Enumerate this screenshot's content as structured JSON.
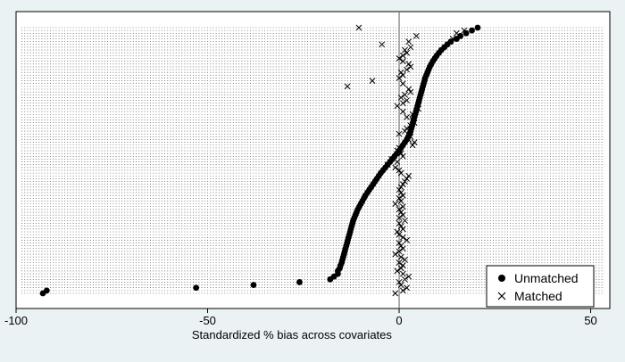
{
  "chart_data": {
    "type": "scatter",
    "title": "",
    "xlabel": "Standardized % bias across covariates",
    "ylabel": "",
    "xlim": [
      -100,
      55
    ],
    "xticks": [
      -100,
      -50,
      0,
      50
    ],
    "xtick_labels": [
      "-100",
      "-50",
      "0",
      "50"
    ],
    "grid": "dotted horizontal line per covariate",
    "reference_line_x": 0,
    "legend_position": "bottom-right",
    "n_covariates": 96,
    "series": [
      {
        "name": "Unmatched",
        "marker": "filled-circle",
        "color": "#000000",
        "values": [
          -93,
          -92,
          -53,
          -38,
          -26,
          -18,
          -17,
          -16,
          -16,
          -15.5,
          -15.3,
          -15,
          -14.8,
          -14.6,
          -14.4,
          -14.2,
          -14,
          -13.8,
          -13.6,
          -13.4,
          -13.2,
          -13,
          -12.8,
          -12.6,
          -12.4,
          -12.2,
          -12,
          -11.7,
          -11.4,
          -11.1,
          -10.8,
          -10.4,
          -10,
          -9.6,
          -9.2,
          -8.8,
          -8.3,
          -7.8,
          -7.3,
          -6.8,
          -6.3,
          -5.8,
          -5.3,
          -4.8,
          -4.2,
          -3.6,
          -3,
          -2.4,
          -1.8,
          -1.2,
          -0.6,
          0,
          0.5,
          1,
          1.5,
          2,
          2.4,
          2.7,
          3,
          3.2,
          3.4,
          3.6,
          3.8,
          4,
          4.2,
          4.4,
          4.6,
          4.8,
          5,
          5.2,
          5.4,
          5.6,
          5.8,
          6,
          6.2,
          6.4,
          6.6,
          6.8,
          7.1,
          7.4,
          7.7,
          8,
          8.4,
          8.8,
          9.3,
          9.8,
          10.4,
          11,
          11.8,
          12.6,
          13.5,
          15,
          16,
          17.5,
          19,
          20.5
        ]
      },
      {
        "name": "Matched",
        "marker": "x",
        "color": "#000000",
        "values": [
          -1,
          1,
          2,
          0.5,
          0,
          1.5,
          2.5,
          1,
          -0.5,
          0.5,
          1,
          0,
          1.5,
          0.5,
          -1,
          0,
          1,
          0.5,
          0,
          2,
          1,
          0,
          -0.5,
          1,
          0.5,
          0,
          1.5,
          0,
          1,
          0.5,
          0,
          1,
          -1,
          0.5,
          0,
          1,
          0.5,
          0,
          0.5,
          1,
          1.5,
          2,
          2.5,
          0.5,
          0,
          -1,
          -3,
          -0.5,
          -2,
          1,
          0.5,
          -0.5,
          0,
          3.5,
          4,
          2.5,
          3,
          0,
          1.5,
          2,
          3,
          4,
          3.5,
          2,
          3.5,
          1,
          5,
          -0.5,
          1,
          2,
          0.5,
          1.5,
          3,
          2.5,
          -13.5,
          1,
          -7,
          0,
          1,
          0.5,
          2,
          3,
          2.5,
          1,
          0,
          1,
          2,
          1.5,
          3,
          -4.5,
          2.5,
          14,
          4.5,
          15,
          17,
          -10.5
        ]
      }
    ]
  }
}
